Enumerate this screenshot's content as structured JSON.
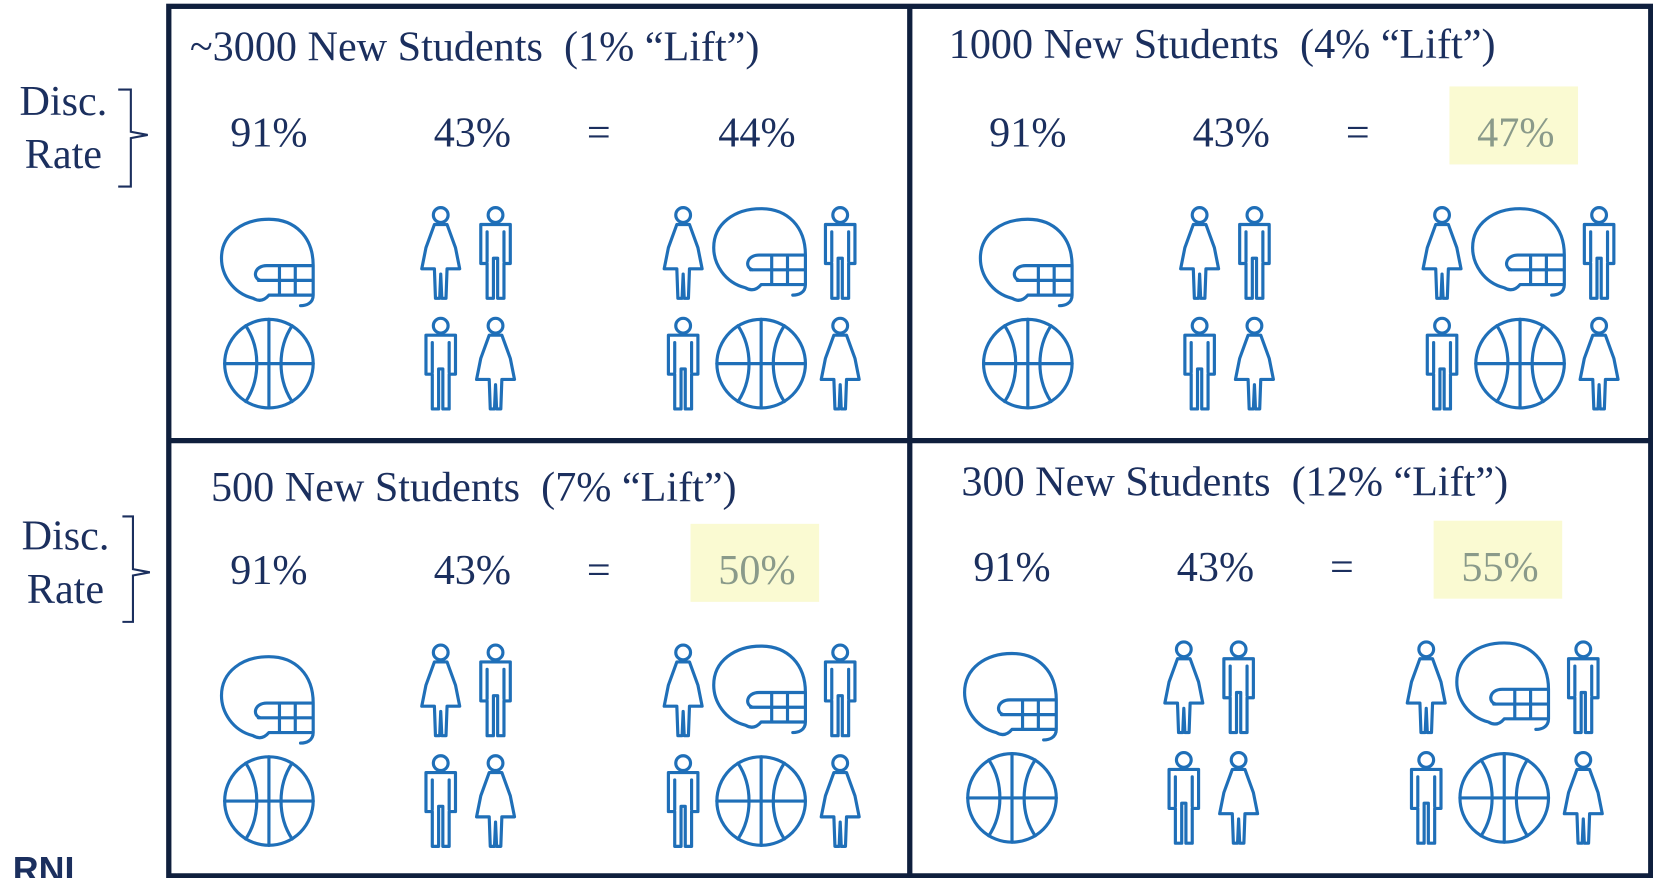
{
  "side_labels": [
    {
      "line1": "Disc.",
      "line2": "Rate"
    },
    {
      "line1": "Disc.",
      "line2": "Rate"
    }
  ],
  "panels": [
    {
      "title": "~3000 New Students  (1% “Lift”)",
      "discount": "91%",
      "retention": "43%",
      "equals": "=",
      "result": "44%",
      "highlight": false
    },
    {
      "title": "1000 New Students  (4% “Lift”)",
      "discount": "91%",
      "retention": "43%",
      "equals": "=",
      "result": "47%",
      "highlight": true
    },
    {
      "title": "500 New Students  (7% “Lift”)",
      "discount": "91%",
      "retention": "43%",
      "equals": "=",
      "result": "50%",
      "highlight": true
    },
    {
      "title": "300 New Students  (12% “Lift”)",
      "discount": "91%",
      "retention": "43%",
      "equals": "=",
      "result": "55%",
      "highlight": true
    }
  ],
  "logo": "RNL"
}
